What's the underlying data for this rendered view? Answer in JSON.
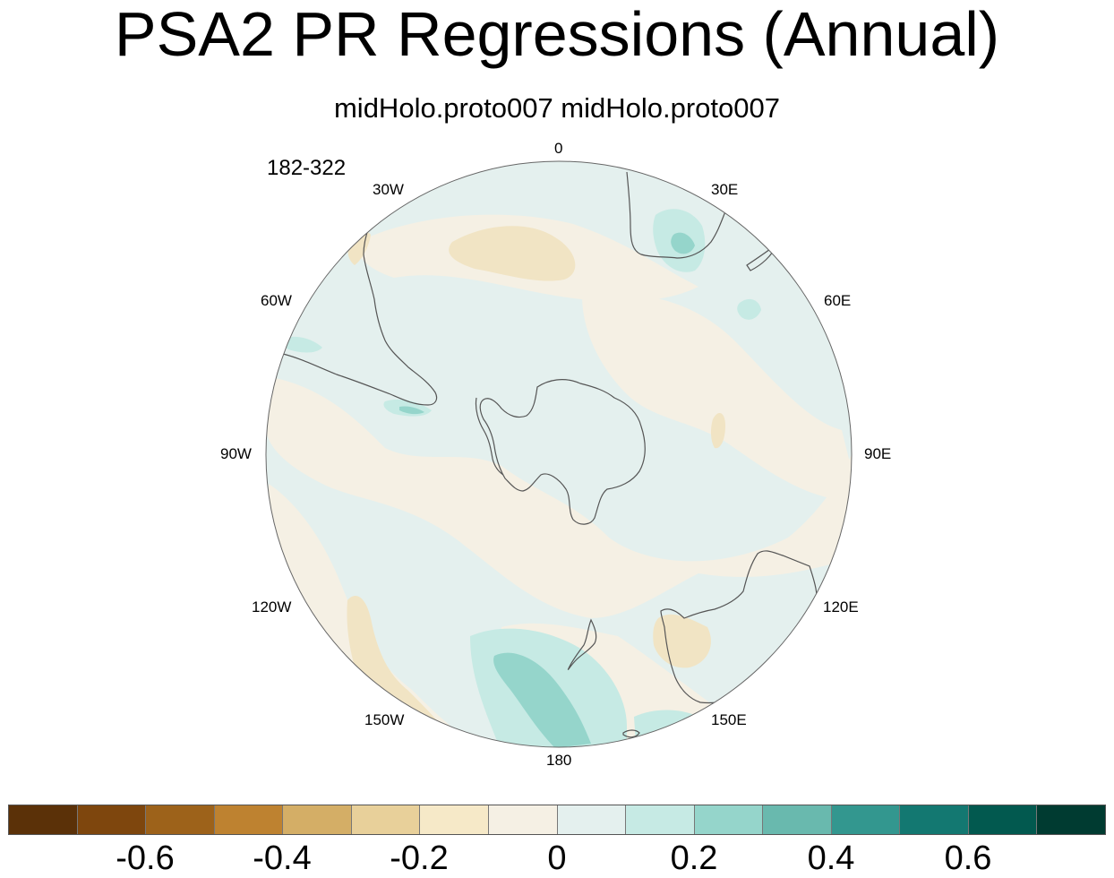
{
  "title": "PSA2 PR Regressions (Annual)",
  "subtitle": "midHolo.proto007  midHolo.proto007",
  "period": "182-322",
  "longitude_labels": [
    "0",
    "30E",
    "60E",
    "90E",
    "120E",
    "150E",
    "180",
    "150W",
    "120W",
    "90W",
    "60W",
    "30W"
  ],
  "colorbar": {
    "colors": [
      "#5b3108",
      "#7e460d",
      "#9d621a",
      "#be8230",
      "#d4ae66",
      "#e8d09a",
      "#f6e9c8",
      "#f5f0e4",
      "#e4f0ee",
      "#c6eae4",
      "#95d5cb",
      "#69b9ae",
      "#33978f",
      "#137871",
      "#02594f",
      "#003b31"
    ],
    "tick_labels": [
      "-0.6",
      "-0.4",
      "-0.2",
      "0",
      "0.2",
      "0.4",
      "0.6"
    ]
  },
  "map": {
    "projection": "south polar stereographic",
    "background_color": "#e4f0ee",
    "neutral_color": "#f5f0e4",
    "dry_color": "#f1e4c4",
    "wet_color": "#c6eae4",
    "wetter_color": "#95d5cb",
    "coast_color": "#555555"
  }
}
